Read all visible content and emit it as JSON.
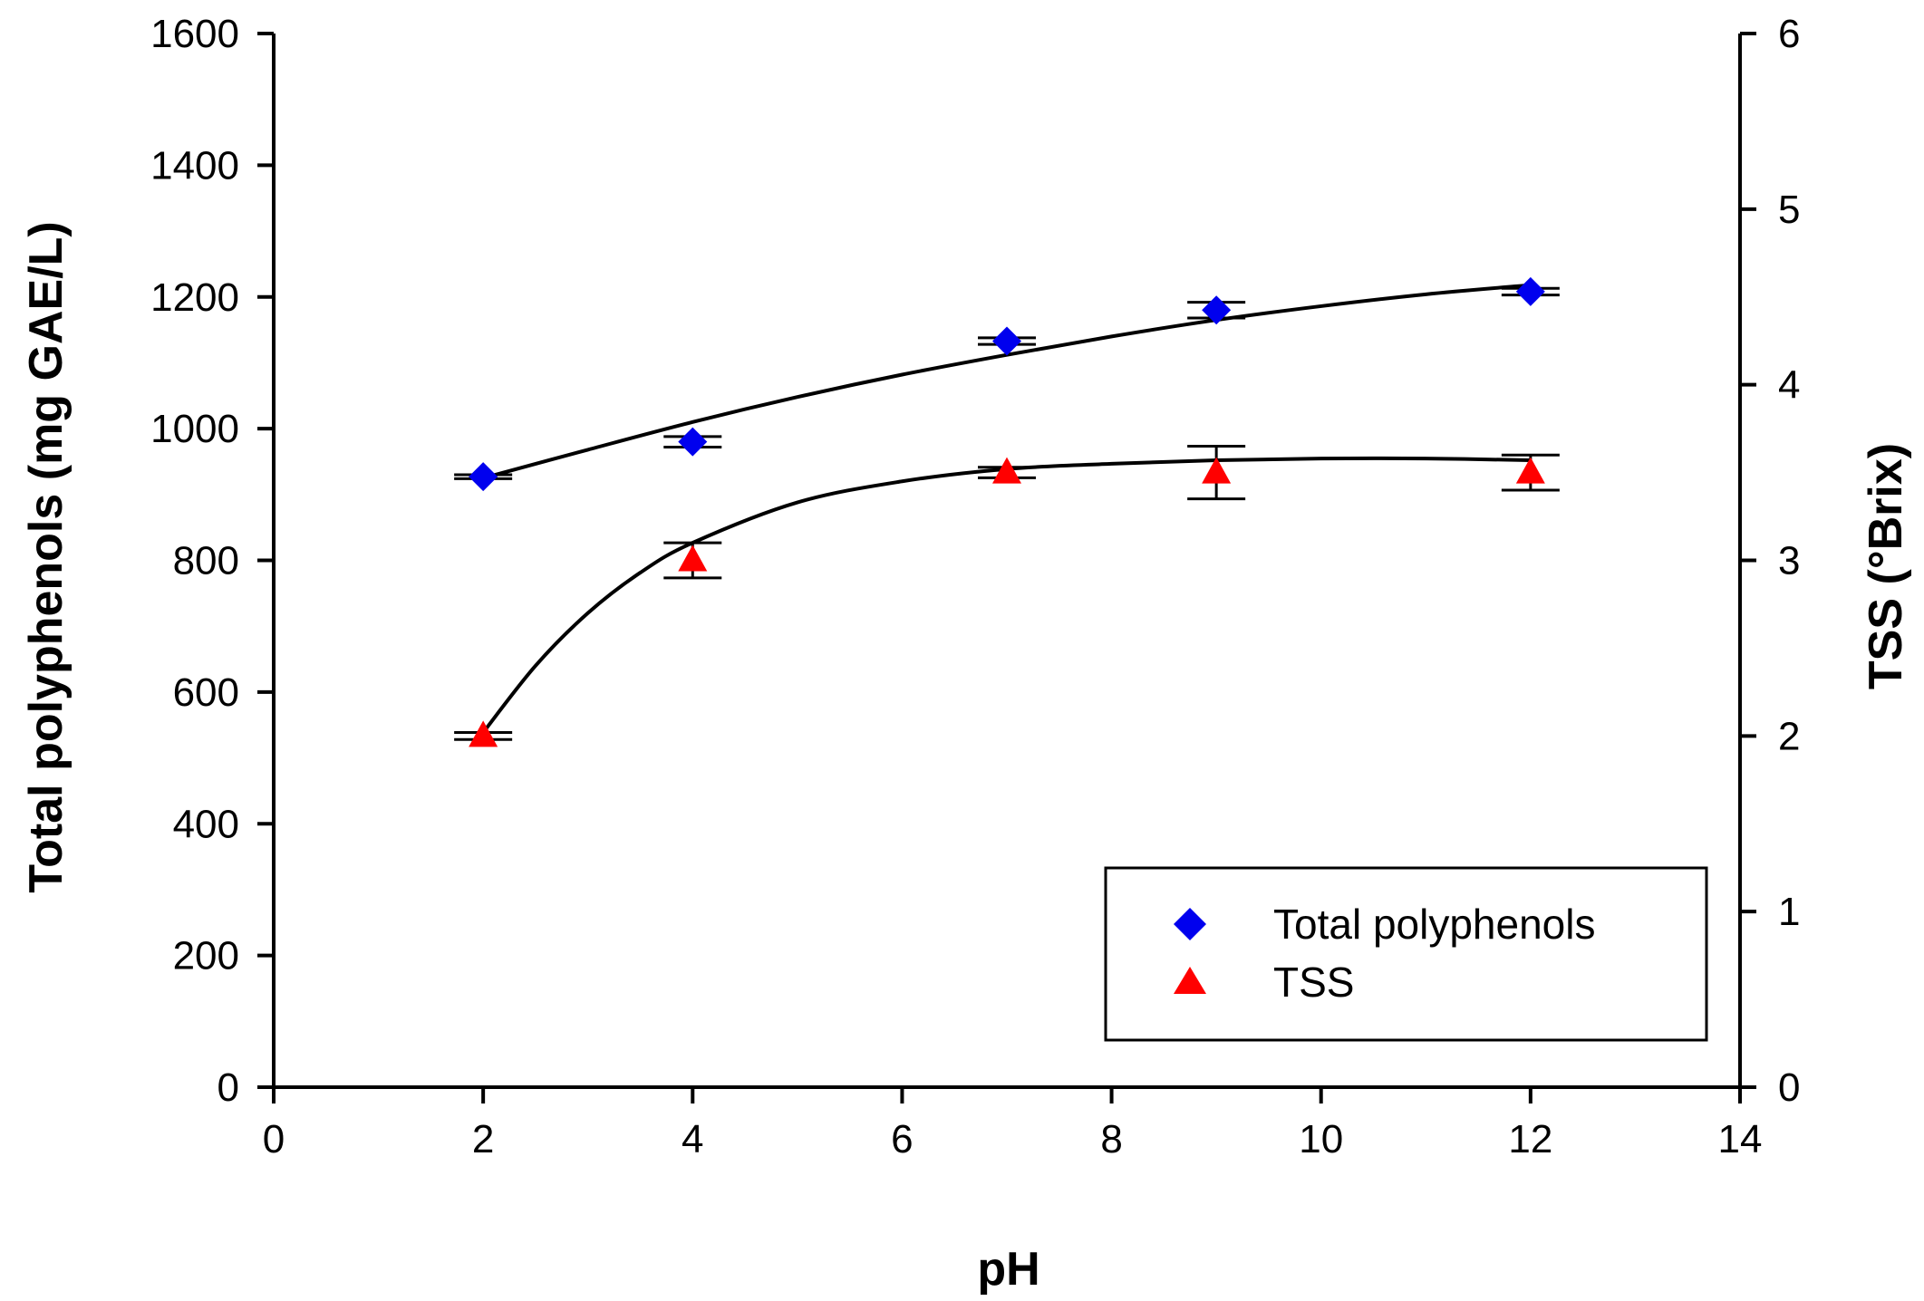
{
  "chart_data": {
    "type": "scatter",
    "xlabel": "pH",
    "ylabel": "Total polyphenols (mg GAE/L)",
    "y2label": "TSS (°Brix)",
    "xlim": [
      0,
      14
    ],
    "ylim": [
      0,
      1600
    ],
    "y2lim": [
      0,
      6
    ],
    "xticks": [
      0,
      2,
      4,
      6,
      8,
      10,
      12,
      14
    ],
    "yticks": [
      0,
      200,
      400,
      600,
      800,
      1000,
      1200,
      1400,
      1600
    ],
    "y2ticks": [
      0,
      1,
      2,
      3,
      4,
      5,
      6
    ],
    "grid": false,
    "legend_position": "bottom-right",
    "series": [
      {
        "name": "Total polyphenols",
        "axis": "left",
        "marker": "diamond",
        "color": "#0000ee",
        "x": [
          2,
          4,
          7,
          9,
          12
        ],
        "values": [
          927,
          980,
          1133,
          1180,
          1208
        ],
        "errors": [
          3,
          8,
          5,
          12,
          5
        ],
        "fit_x": [
          2,
          3,
          4,
          5,
          6,
          7,
          8,
          9,
          10,
          11,
          12
        ],
        "fit_y": [
          925,
          968,
          1010,
          1048,
          1082,
          1112,
          1140,
          1165,
          1186,
          1204,
          1218
        ]
      },
      {
        "name": "TSS",
        "axis": "right",
        "marker": "triangle",
        "color": "#ff0000",
        "x": [
          2,
          4,
          7,
          9,
          12
        ],
        "values": [
          2.0,
          3.0,
          3.5,
          3.5,
          3.5
        ],
        "errors": [
          0.02,
          0.1,
          0.03,
          0.15,
          0.1
        ],
        "fit_x": [
          2,
          2.5,
          3,
          3.5,
          4,
          5,
          6,
          7,
          8,
          9,
          10,
          11,
          12
        ],
        "fit_y": [
          2.02,
          2.4,
          2.7,
          2.93,
          3.1,
          3.33,
          3.45,
          3.52,
          3.55,
          3.57,
          3.58,
          3.58,
          3.57
        ]
      }
    ]
  }
}
